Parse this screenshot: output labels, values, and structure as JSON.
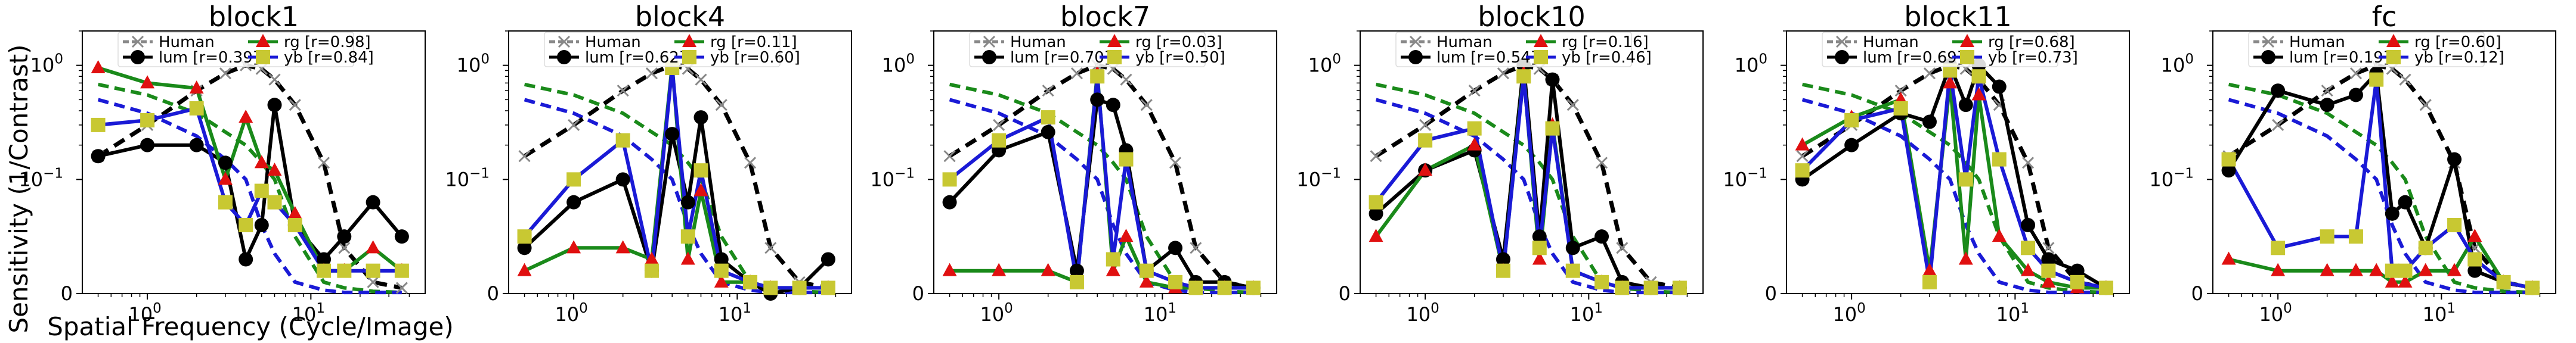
{
  "figure": {
    "ylabel": "Sensitivity (1/Contrast)",
    "xlabel": "Spatial Frequency (Cycle/Image)"
  },
  "colors": {
    "human": "#000000",
    "lum": "#000000",
    "rg": "#1a8a1a",
    "yb": "#1a1ad6",
    "marker_yb": "#c8c832",
    "marker_rg": "#e01010",
    "cross": "#f07070"
  },
  "chart_data": [
    {
      "type": "line",
      "title": "block1",
      "x_scale": "log",
      "y_scale": "symlog",
      "xlim": [
        0.4,
        50
      ],
      "ylim": [
        0,
        2
      ],
      "x_ticks": [
        "10^0",
        "10^1"
      ],
      "y_ticks": [
        "0",
        "10^-1",
        "10^0"
      ],
      "legend": {
        "human": "Human",
        "lum": "lum [r=0.39]",
        "rg": "rg    [r=0.98]",
        "yb": "yb    [r=0.84]"
      },
      "x": [
        0.5,
        1,
        2,
        3,
        4,
        5,
        6,
        8,
        12,
        16,
        24,
        36
      ],
      "human": [
        0.16,
        0.3,
        0.6,
        0.85,
        1.0,
        0.93,
        0.75,
        0.45,
        0.14,
        0.04,
        0.01,
        0.005
      ],
      "human_lum": [
        0.68,
        0.55,
        0.38,
        0.26,
        0.2,
        0.14,
        0.1,
        0.05,
        0.01,
        0.005,
        0.002,
        0.001
      ],
      "human_chrom": [
        0.5,
        0.38,
        0.24,
        0.15,
        0.1,
        0.06,
        0.035,
        0.01,
        0.003,
        0.001,
        0.001,
        0.001
      ],
      "series": [
        {
          "name": "lum",
          "values": [
            0.16,
            0.2,
            0.2,
            0.14,
            0.03,
            0.06,
            0.45,
            0.06,
            0.03,
            0.05,
            0.08,
            0.05
          ]
        },
        {
          "name": "rg",
          "values": [
            0.95,
            0.7,
            0.63,
            0.1,
            0.35,
            0.14,
            0.12,
            0.07,
            0.02,
            0.02,
            0.04,
            0.02
          ]
        },
        {
          "name": "yb",
          "values": [
            0.3,
            0.33,
            0.42,
            0.08,
            0.06,
            0.09,
            0.08,
            0.06,
            0.02,
            0.02,
            0.02,
            0.02
          ]
        }
      ]
    },
    {
      "type": "line",
      "title": "block4",
      "x_scale": "log",
      "y_scale": "symlog",
      "xlim": [
        0.4,
        50
      ],
      "ylim": [
        0,
        2
      ],
      "x_ticks": [
        "10^0",
        "10^1"
      ],
      "y_ticks": [
        "0",
        "10^-1",
        "10^0"
      ],
      "legend": {
        "human": "Human",
        "lum": "lum [r=0.62]",
        "rg": "rg    [r=0.11]",
        "yb": "yb    [r=0.60]"
      },
      "x": [
        0.5,
        1,
        2,
        3,
        4,
        5,
        6,
        8,
        12,
        16,
        24,
        36
      ],
      "human": [
        0.16,
        0.3,
        0.6,
        0.85,
        1.0,
        0.93,
        0.75,
        0.45,
        0.14,
        0.04,
        0.01,
        0.005
      ],
      "human_lum": [
        0.68,
        0.55,
        0.38,
        0.26,
        0.2,
        0.14,
        0.1,
        0.05,
        0.01,
        0.005,
        0.002,
        0.001
      ],
      "human_chrom": [
        0.5,
        0.38,
        0.24,
        0.15,
        0.1,
        0.06,
        0.035,
        0.01,
        0.003,
        0.001,
        0.001,
        0.001
      ],
      "series": [
        {
          "name": "lum",
          "values": [
            0.04,
            0.08,
            0.1,
            0.02,
            0.25,
            0.08,
            0.35,
            0.03,
            0.01,
            0.0,
            0.005,
            0.03
          ]
        },
        {
          "name": "rg",
          "values": [
            0.02,
            0.04,
            0.04,
            0.03,
            1.0,
            0.03,
            0.09,
            0.01,
            0.01,
            0.005,
            0.005,
            0.005
          ]
        },
        {
          "name": "yb",
          "values": [
            0.05,
            0.1,
            0.22,
            0.02,
            0.95,
            0.05,
            0.12,
            0.02,
            0.01,
            0.005,
            0.005,
            0.005
          ]
        }
      ]
    },
    {
      "type": "line",
      "title": "block7",
      "x_scale": "log",
      "y_scale": "symlog",
      "xlim": [
        0.4,
        50
      ],
      "ylim": [
        0,
        2
      ],
      "x_ticks": [
        "10^0",
        "10^1"
      ],
      "y_ticks": [
        "0",
        "10^-1",
        "10^0"
      ],
      "legend": {
        "human": "Human",
        "lum": "lum [r=0.70]",
        "rg": "rg    [r=0.03]",
        "yb": "yb    [r=0.50]"
      },
      "x": [
        0.5,
        1,
        2,
        3,
        4,
        5,
        6,
        8,
        12,
        16,
        24,
        36
      ],
      "human": [
        0.16,
        0.3,
        0.6,
        0.85,
        1.0,
        0.93,
        0.75,
        0.45,
        0.14,
        0.04,
        0.01,
        0.005
      ],
      "human_lum": [
        0.68,
        0.55,
        0.38,
        0.26,
        0.2,
        0.14,
        0.1,
        0.05,
        0.01,
        0.005,
        0.002,
        0.001
      ],
      "human_chrom": [
        0.5,
        0.38,
        0.24,
        0.15,
        0.1,
        0.06,
        0.035,
        0.01,
        0.003,
        0.001,
        0.001,
        0.001
      ],
      "series": [
        {
          "name": "lum",
          "values": [
            0.08,
            0.18,
            0.26,
            0.02,
            0.5,
            0.45,
            0.18,
            0.02,
            0.04,
            0.01,
            0.01,
            0.005
          ]
        },
        {
          "name": "rg",
          "values": [
            0.02,
            0.02,
            0.02,
            0.01,
            0.85,
            0.02,
            0.05,
            0.01,
            0.005,
            0.005,
            0.005,
            0.005
          ]
        },
        {
          "name": "yb",
          "values": [
            0.1,
            0.22,
            0.35,
            0.01,
            0.8,
            0.03,
            0.15,
            0.02,
            0.01,
            0.005,
            0.005,
            0.005
          ]
        }
      ]
    },
    {
      "type": "line",
      "title": "block10",
      "x_scale": "log",
      "y_scale": "symlog",
      "xlim": [
        0.4,
        50
      ],
      "ylim": [
        0,
        2
      ],
      "x_ticks": [
        "10^0",
        "10^1"
      ],
      "y_ticks": [
        "0",
        "10^-1",
        "10^0"
      ],
      "legend": {
        "human": "Human",
        "lum": "lum [r=0.54]",
        "rg": "rg    [r=0.16]",
        "yb": "yb    [r=0.46]"
      },
      "x": [
        0.5,
        1,
        2,
        3,
        4,
        5,
        6,
        8,
        12,
        16,
        24,
        36
      ],
      "human": [
        0.16,
        0.3,
        0.6,
        0.85,
        1.0,
        0.93,
        0.75,
        0.45,
        0.14,
        0.04,
        0.01,
        0.005
      ],
      "human_lum": [
        0.68,
        0.55,
        0.38,
        0.26,
        0.2,
        0.14,
        0.1,
        0.05,
        0.01,
        0.005,
        0.002,
        0.001
      ],
      "human_chrom": [
        0.5,
        0.38,
        0.24,
        0.15,
        0.1,
        0.06,
        0.035,
        0.01,
        0.003,
        0.001,
        0.001,
        0.001
      ],
      "series": [
        {
          "name": "lum",
          "values": [
            0.07,
            0.12,
            0.18,
            0.03,
            1.0,
            0.05,
            0.75,
            0.04,
            0.05,
            0.01,
            0.005,
            0.005
          ]
        },
        {
          "name": "rg",
          "values": [
            0.05,
            0.12,
            0.2,
            0.02,
            0.85,
            0.03,
            0.3,
            0.02,
            0.01,
            0.005,
            0.005,
            0.005
          ]
        },
        {
          "name": "yb",
          "values": [
            0.08,
            0.22,
            0.28,
            0.02,
            0.8,
            0.04,
            0.28,
            0.02,
            0.01,
            0.005,
            0.005,
            0.005
          ]
        }
      ]
    },
    {
      "type": "line",
      "title": "block11",
      "x_scale": "log",
      "y_scale": "symlog",
      "xlim": [
        0.4,
        50
      ],
      "ylim": [
        0,
        2
      ],
      "x_ticks": [
        "10^0",
        "10^1"
      ],
      "y_ticks": [
        "0",
        "10^-1",
        "10^0"
      ],
      "legend": {
        "human": "Human",
        "lum": "lum [r=0.69]",
        "rg": "rg    [r=0.68]",
        "yb": "yb    [r=0.73]"
      },
      "x": [
        0.5,
        1,
        2,
        3,
        4,
        5,
        6,
        8,
        12,
        16,
        24,
        36
      ],
      "human": [
        0.16,
        0.3,
        0.6,
        0.85,
        1.0,
        0.93,
        0.75,
        0.45,
        0.14,
        0.04,
        0.01,
        0.005
      ],
      "human_lum": [
        0.68,
        0.55,
        0.38,
        0.26,
        0.2,
        0.14,
        0.1,
        0.05,
        0.01,
        0.005,
        0.002,
        0.001
      ],
      "human_chrom": [
        0.5,
        0.38,
        0.24,
        0.15,
        0.1,
        0.06,
        0.035,
        0.01,
        0.003,
        0.001,
        0.001,
        0.001
      ],
      "series": [
        {
          "name": "lum",
          "values": [
            0.1,
            0.2,
            0.38,
            0.32,
            1.0,
            0.45,
            1.0,
            0.65,
            0.06,
            0.03,
            0.02,
            0.005
          ]
        },
        {
          "name": "rg",
          "values": [
            0.2,
            0.35,
            0.5,
            0.02,
            0.7,
            0.03,
            0.55,
            0.05,
            0.02,
            0.01,
            0.005,
            0.005
          ]
        },
        {
          "name": "yb",
          "values": [
            0.12,
            0.33,
            0.42,
            0.01,
            0.9,
            0.1,
            0.8,
            0.15,
            0.04,
            0.02,
            0.01,
            0.005
          ]
        }
      ]
    },
    {
      "type": "line",
      "title": "fc",
      "x_scale": "log",
      "y_scale": "symlog",
      "xlim": [
        0.4,
        50
      ],
      "ylim": [
        0,
        2
      ],
      "x_ticks": [
        "10^0",
        "10^1"
      ],
      "y_ticks": [
        "0",
        "10^-1",
        "10^0"
      ],
      "legend": {
        "human": "Human",
        "lum": "lum [r=0.19]",
        "rg": "rg    [r=0.60]",
        "yb": "yb    [r=0.12]"
      },
      "x": [
        0.5,
        1,
        2,
        3,
        4,
        5,
        6,
        8,
        12,
        16,
        24,
        36
      ],
      "human": [
        0.16,
        0.3,
        0.6,
        0.85,
        1.0,
        0.93,
        0.75,
        0.45,
        0.14,
        0.04,
        0.01,
        0.005
      ],
      "human_lum": [
        0.68,
        0.55,
        0.38,
        0.26,
        0.2,
        0.14,
        0.1,
        0.05,
        0.01,
        0.005,
        0.002,
        0.001
      ],
      "human_chrom": [
        0.5,
        0.38,
        0.24,
        0.15,
        0.1,
        0.06,
        0.035,
        0.01,
        0.003,
        0.001,
        0.001,
        0.001
      ],
      "series": [
        {
          "name": "lum",
          "values": [
            0.12,
            0.6,
            0.45,
            0.55,
            0.85,
            0.07,
            0.08,
            0.04,
            0.15,
            0.02,
            0.01,
            0.005
          ]
        },
        {
          "name": "rg",
          "values": [
            0.03,
            0.02,
            0.02,
            0.02,
            0.02,
            0.01,
            0.01,
            0.02,
            0.02,
            0.05,
            0.01,
            0.005
          ]
        },
        {
          "name": "yb",
          "values": [
            0.15,
            0.04,
            0.05,
            0.05,
            0.75,
            0.02,
            0.02,
            0.04,
            0.06,
            0.03,
            0.01,
            0.005
          ]
        }
      ]
    }
  ]
}
